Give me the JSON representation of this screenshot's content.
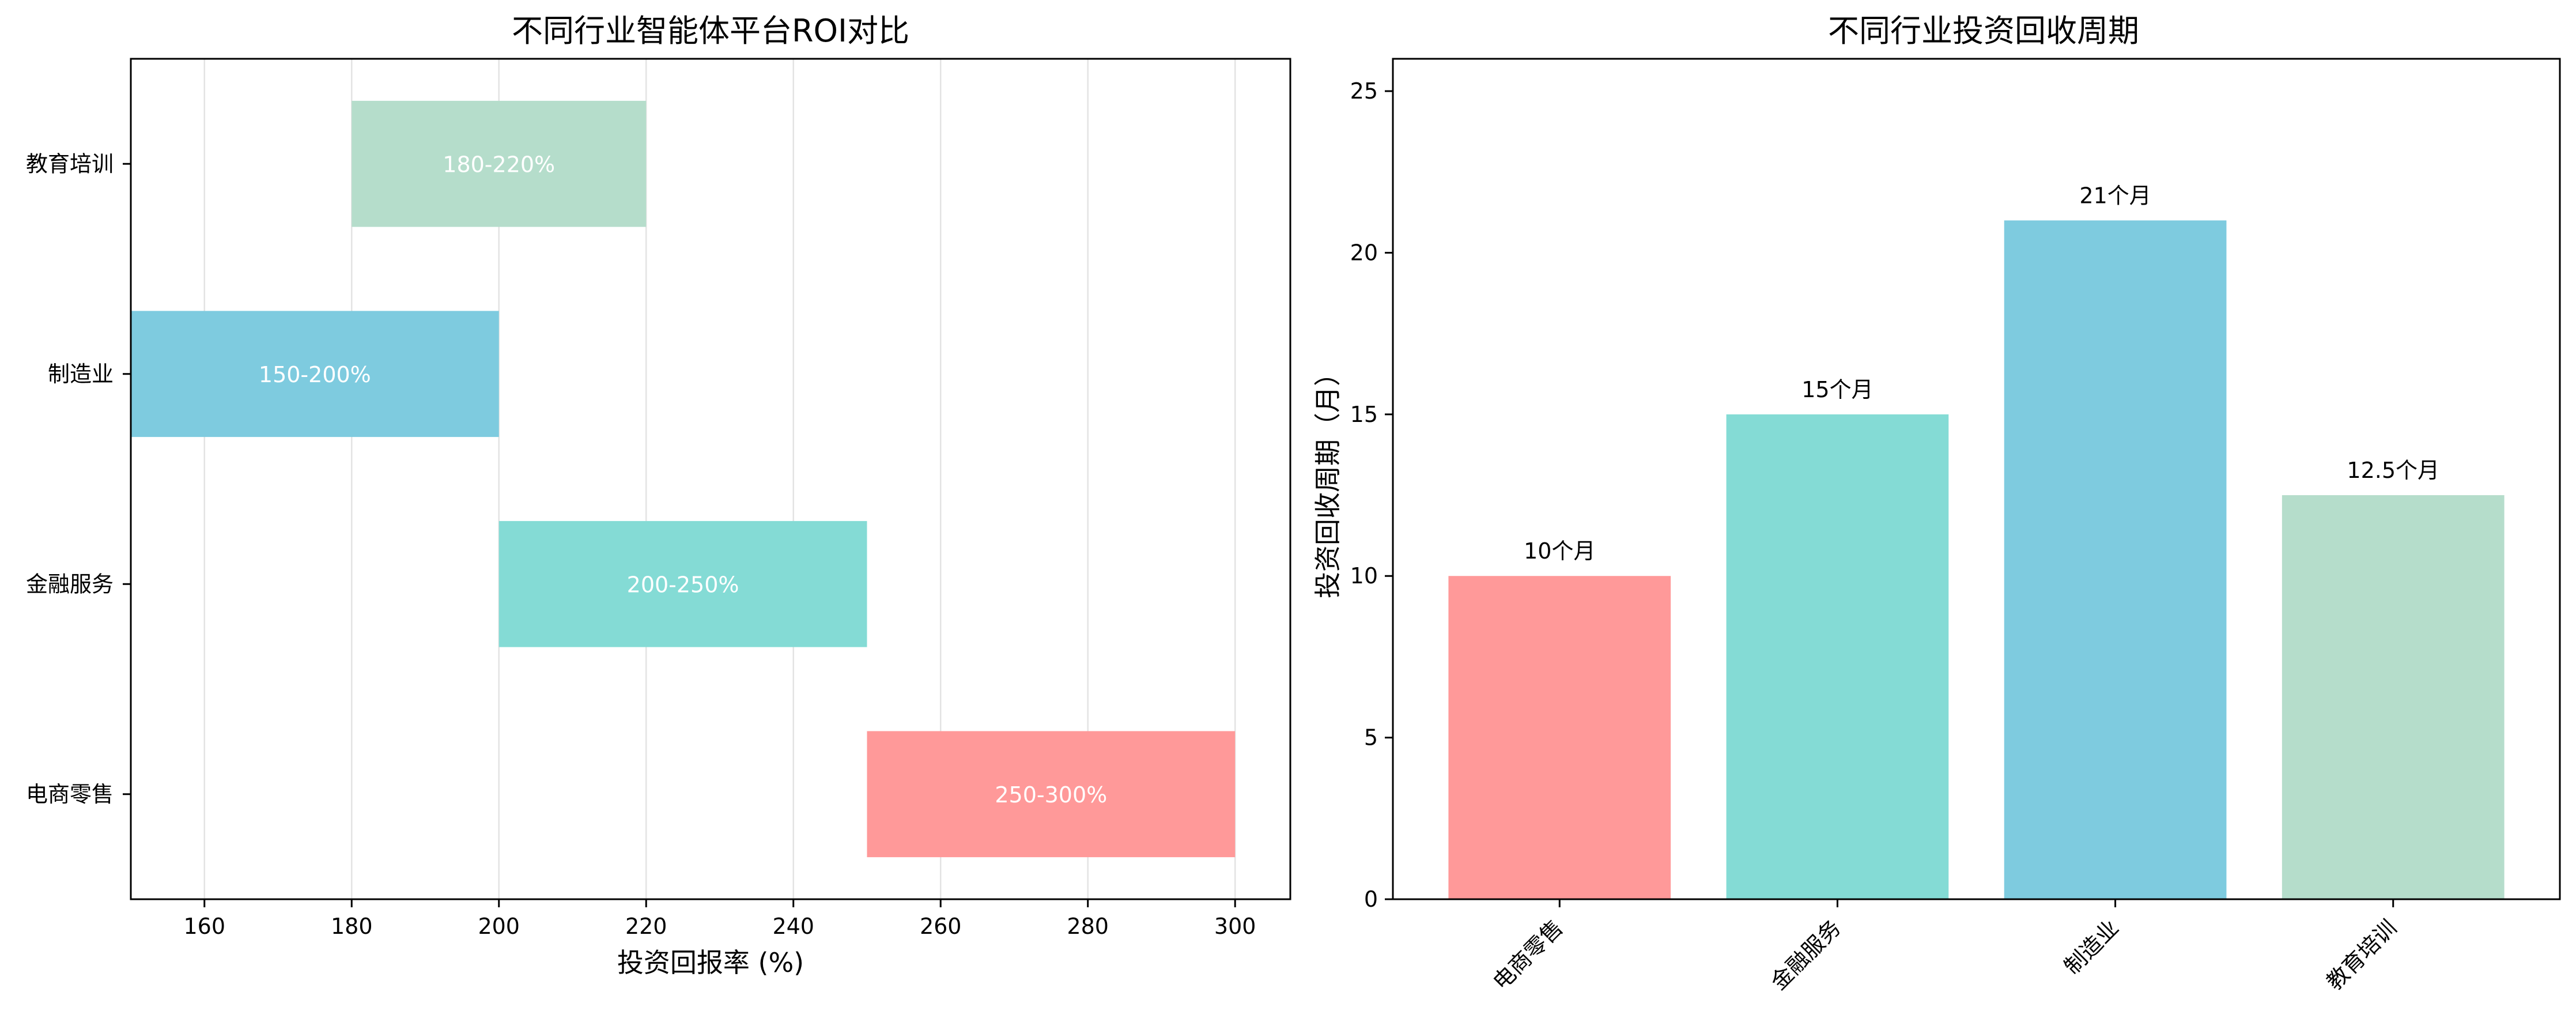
{
  "chart_data": [
    {
      "type": "bar",
      "orientation": "horizontal-range",
      "title": "不同行业智能体平台ROI对比",
      "xlabel": "投资回报率 (%)",
      "ylabel": "",
      "xlim": [
        150,
        307.5
      ],
      "xticks": [
        "160",
        "180",
        "200",
        "220",
        "240",
        "260",
        "280",
        "300"
      ],
      "grid": "vertical",
      "categories": [
        "电商零售",
        "金融服务",
        "制造业",
        "教育培训"
      ],
      "ranges": [
        [
          250,
          300
        ],
        [
          200,
          250
        ],
        [
          150,
          200
        ],
        [
          180,
          220
        ]
      ],
      "labels": [
        "250-300%",
        "200-250%",
        "150-200%",
        "180-220%"
      ],
      "colors": [
        "#ff9999",
        "#84dbd5",
        "#7ecbdf",
        "#b5ddcb"
      ]
    },
    {
      "type": "bar",
      "title": "不同行业投资回收周期",
      "xlabel": "",
      "ylabel": "投资回收周期（月）",
      "ylim": [
        0,
        26
      ],
      "yticks": [
        "0",
        "5",
        "10",
        "15",
        "20",
        "25"
      ],
      "categories": [
        "电商零售",
        "金融服务",
        "制造业",
        "教育培训"
      ],
      "values": [
        10,
        15,
        21,
        12.5
      ],
      "labels": [
        "10个月",
        "15个月",
        "21个月",
        "12.5个月"
      ],
      "colors": [
        "#ff9999",
        "#84dbd5",
        "#7ecbdf",
        "#b5ddcb"
      ]
    }
  ]
}
